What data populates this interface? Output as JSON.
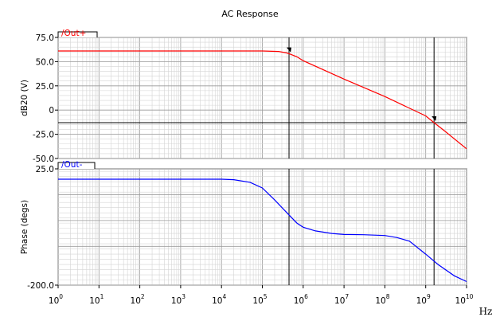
{
  "chart_data": [
    {
      "type": "line",
      "title": "AC Response",
      "ylabel": "dB20 (V)",
      "ylim": [
        -50,
        75
      ],
      "yticks": [
        75,
        50,
        25,
        0,
        -25,
        -50
      ],
      "ytick_labels": [
        "75.0",
        "50.0",
        "25.0",
        "0",
        "-25.0",
        "-50.0"
      ],
      "xscale": "log",
      "xlim": [
        1,
        10000000000
      ],
      "grid": true,
      "legend": "top-left",
      "series": [
        {
          "name": "/Out+",
          "color": "#ff0000",
          "x": [
            1,
            1000,
            10000,
            100000,
            250000,
            400000,
            500000,
            700000,
            1000000,
            10000000,
            100000000,
            1000000000,
            1600000000,
            3000000000,
            10000000000
          ],
          "y": [
            61,
            61,
            61,
            61,
            60.5,
            59,
            57.5,
            55,
            51,
            32,
            14,
            -6,
            -13,
            -22,
            -40
          ]
        }
      ],
      "markers": [
        {
          "x": 450000,
          "y": 58
        },
        {
          "x": 1600000000,
          "y": -13
        }
      ],
      "cursor_y": -13
    },
    {
      "type": "line",
      "ylabel": "Phase (degs)",
      "ylim": [
        -200,
        25
      ],
      "yticks": [
        25,
        -200
      ],
      "ytick_labels": [
        "25.0",
        "-200.0"
      ],
      "xscale": "log",
      "xlim": [
        1,
        10000000000
      ],
      "xlabel": "Hz",
      "xtick_bases": [
        "10",
        "10",
        "10",
        "10",
        "10",
        "10",
        "10",
        "10",
        "10",
        "10",
        "10"
      ],
      "xtick_exponents": [
        "0",
        "1",
        "2",
        "3",
        "4",
        "5",
        "6",
        "7",
        "8",
        "9",
        "10"
      ],
      "grid": true,
      "legend": "top-left",
      "series": [
        {
          "name": "/Out-",
          "color": "#0000ff",
          "x": [
            1,
            10000,
            20000,
            50000,
            100000,
            200000,
            400000,
            700000,
            1000000,
            2000000,
            5000000,
            10000000,
            30000000,
            100000000,
            200000000,
            400000000,
            1000000000,
            2000000000,
            5000000000,
            10000000000
          ],
          "y": [
            5,
            5,
            4,
            -1,
            -12,
            -35,
            -60,
            -80,
            -88,
            -95,
            -100,
            -102,
            -102.5,
            -104,
            -108,
            -115,
            -140,
            -160,
            -182,
            -193
          ]
        }
      ],
      "cursor_x": [
        450000,
        1600000000
      ]
    }
  ]
}
